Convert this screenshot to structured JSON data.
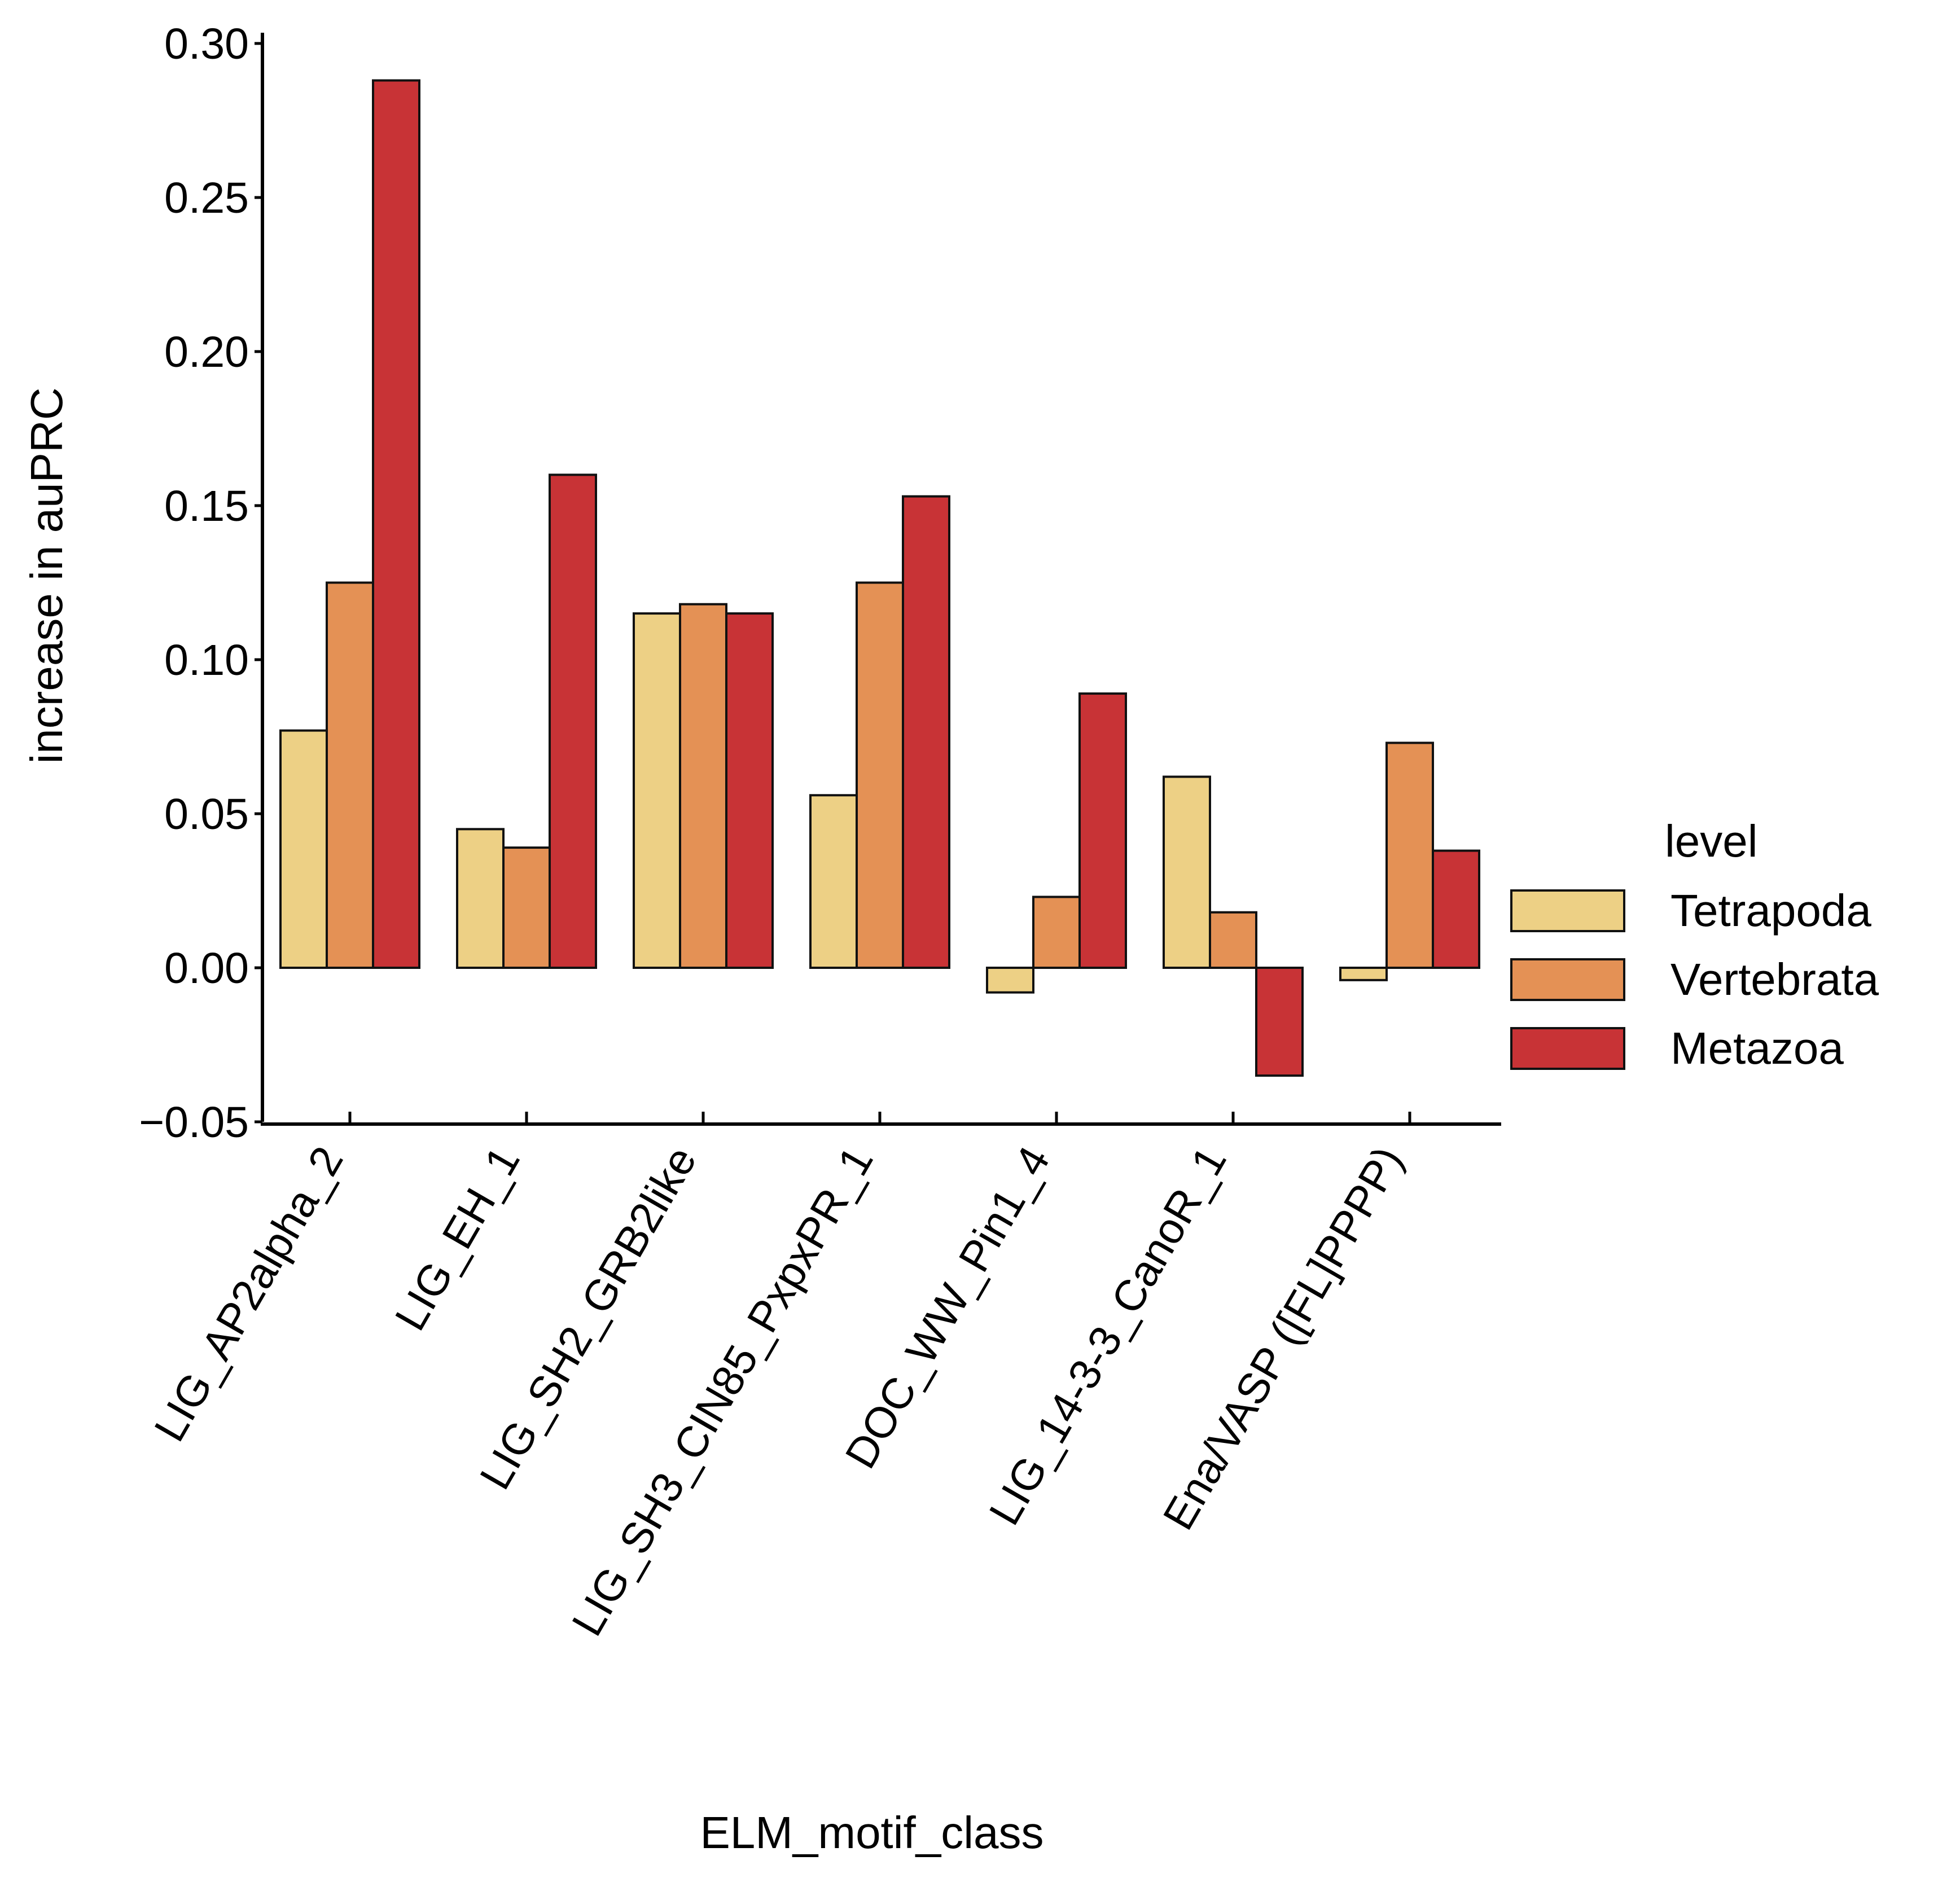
{
  "chart_data": {
    "type": "bar",
    "title": "",
    "xlabel": "ELM_motif_class",
    "ylabel": "increase in auPRC",
    "ylim": [
      -0.05,
      0.3
    ],
    "yticks": [
      -0.05,
      0.0,
      0.05,
      0.1,
      0.15,
      0.2,
      0.25,
      0.3
    ],
    "ytick_labels": [
      "−0.05",
      "0.00",
      "0.05",
      "0.10",
      "0.15",
      "0.20",
      "0.25",
      "0.30"
    ],
    "grid": false,
    "categories": [
      "LIG_AP2alpha_2",
      "LIG_EH_1",
      "LIG_SH2_GRB2like",
      "LIG_SH3_CIN85_PxpxPR_1",
      "DOC_WW_Pin1_4",
      "LIG_14-3-3_CanoR_1",
      "Ena/VASP ([FL]PPPP)"
    ],
    "legend": {
      "title": "level",
      "position": "right"
    },
    "series": [
      {
        "name": "Tetrapoda",
        "color": "#EDD085",
        "values": [
          0.077,
          0.045,
          0.115,
          0.056,
          -0.008,
          0.062,
          -0.004
        ]
      },
      {
        "name": "Vertebrata",
        "color": "#E49155",
        "values": [
          0.125,
          0.039,
          0.118,
          0.125,
          0.023,
          0.018,
          0.073
        ]
      },
      {
        "name": "Metazoa",
        "color": "#C83336",
        "values": [
          0.288,
          0.16,
          0.115,
          0.153,
          0.089,
          -0.035,
          0.038
        ]
      }
    ]
  }
}
